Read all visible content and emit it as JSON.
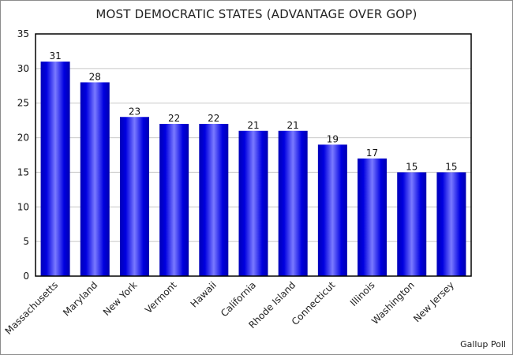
{
  "chart_data": {
    "type": "bar",
    "title": "MOST DEMOCRATIC STATES (ADVANTAGE OVER GOP)",
    "categories": [
      "Massachusetts",
      "Maryland",
      "New York",
      "Vermont",
      "Hawaii",
      "California",
      "Rhode Island",
      "Connecticut",
      "Illinois",
      "Washington",
      "New Jersey"
    ],
    "values": [
      31,
      28,
      23,
      22,
      22,
      21,
      21,
      19,
      17,
      15,
      15
    ],
    "xlabel": "",
    "ylabel": "",
    "ylim": [
      0,
      35
    ],
    "yticks": [
      0,
      5,
      10,
      15,
      20,
      25,
      30,
      35
    ],
    "grid": true,
    "data_labels": true,
    "bar_color": "#0000e0",
    "bar_highlight": "#7a7aff"
  },
  "source": "Gallup Poll"
}
